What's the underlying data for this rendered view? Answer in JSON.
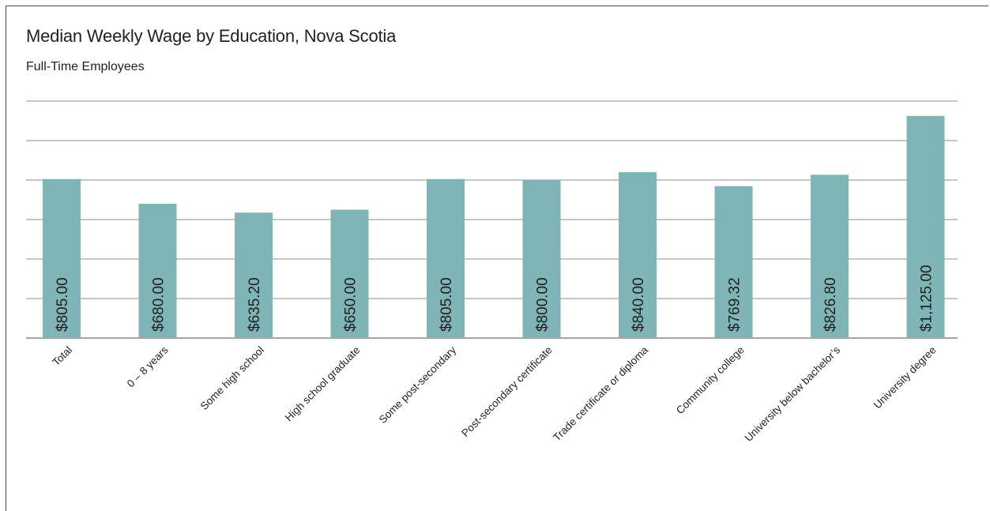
{
  "chart_data": {
    "type": "bar",
    "title": "Median Weekly Wage by Education, Nova Scotia",
    "subtitle": "Full-Time Employees",
    "categories": [
      "Total",
      "0 – 8 years",
      "Some high school",
      "High school graduate",
      "Some post-secondary",
      "Post-secondary certificate",
      "Trade certificate or diploma",
      "Community college",
      "University below bachelor’s",
      "University degree"
    ],
    "values": [
      805.0,
      680.0,
      635.2,
      650.0,
      805.0,
      800.0,
      840.0,
      769.32,
      826.8,
      1125.0
    ],
    "value_labels": [
      "$805.00",
      "$680.00",
      "$635.20",
      "$650.00",
      "$805.00",
      "$800.00",
      "$840.00",
      "$769.32",
      "$826.80",
      "$1,125.00"
    ],
    "ylim": [
      0,
      1200
    ],
    "grid": true,
    "legend": "none",
    "colors": {
      "bar": "#7fb5b6",
      "grid": "#8c8c8c",
      "axis": "#4a4a4a"
    }
  }
}
